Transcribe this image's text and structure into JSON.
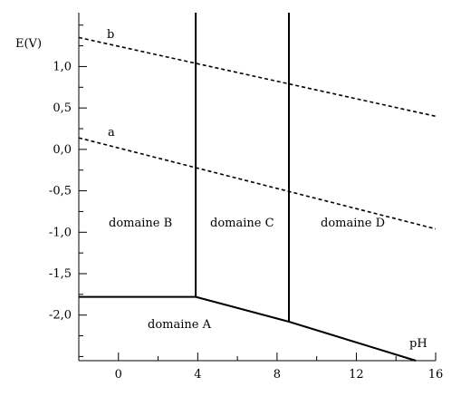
{
  "chart_data": {
    "type": "line",
    "title": "",
    "xlabel": "pH",
    "ylabel": "E(V)",
    "xlim": [
      -2,
      16
    ],
    "ylim": [
      -2.55,
      1.65
    ],
    "grid": false,
    "x_ticks": [
      0,
      4,
      8,
      12,
      16
    ],
    "x_tick_labels": [
      "0",
      "4",
      "8",
      "12",
      "16"
    ],
    "y_ticks": [
      1.0,
      0.5,
      0.0,
      -0.5,
      -1.0,
      -1.5,
      -2.0
    ],
    "y_tick_labels": [
      "1,0",
      "0,5",
      "0,0",
      "-0,5",
      "-1,0",
      "-1,5",
      "-2,0"
    ],
    "series": [
      {
        "name": "b",
        "style": "dashed",
        "x": [
          -2,
          16
        ],
        "y": [
          1.35,
          0.4
        ]
      },
      {
        "name": "a",
        "style": "dashed",
        "x": [
          -2,
          16
        ],
        "y": [
          0.14,
          -0.96
        ]
      },
      {
        "style": "solid",
        "x": [
          -2,
          3.9
        ],
        "y": [
          -1.78,
          -1.78
        ]
      },
      {
        "style": "solid",
        "x": [
          3.9,
          8.6,
          15.0
        ],
        "y": [
          -1.78,
          -2.08,
          -2.55
        ]
      },
      {
        "style": "solid",
        "x": [
          3.9,
          3.9
        ],
        "y": [
          -1.78,
          1.65
        ]
      },
      {
        "style": "solid",
        "x": [
          8.6,
          8.6
        ],
        "y": [
          -2.08,
          1.65
        ]
      }
    ],
    "annotations": [
      {
        "text": "domaine A",
        "x": 4.5,
        "y": -2.3
      },
      {
        "text": "domaine B",
        "x": 0.9,
        "y": -1.0
      },
      {
        "text": "domaine C",
        "x": 6.3,
        "y": -1.0
      },
      {
        "text": "domaine D",
        "x": 11.9,
        "y": -1.0
      }
    ]
  }
}
